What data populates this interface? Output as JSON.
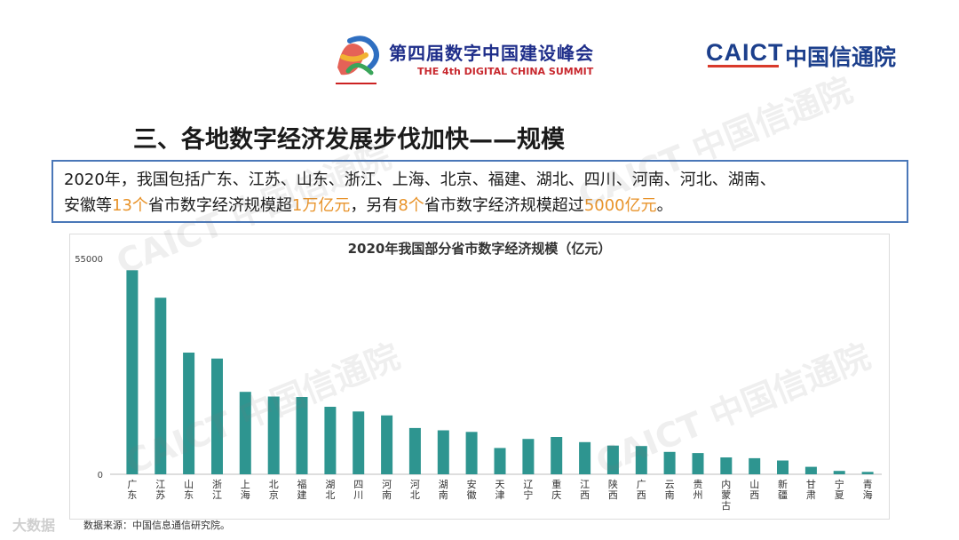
{
  "header": {
    "summit_title": "第四届数字中国建设峰会",
    "summit_subtitle": "THE 4th DIGITAL CHINA SUMMIT",
    "org_logo_en": "CAICT",
    "org_logo_cn": "中国信通院"
  },
  "slide_title": "三、各地数字经济发展步伐加快——规模",
  "summary": {
    "line1": "2020年，我国包括广东、江苏、山东、浙江、上海、北京、福建、湖北、四川、河南、河北、湖南、",
    "line2_a": "安徽等",
    "line2_hl1": "13个",
    "line2_b": "省市数字经济规模超",
    "line2_hl2": "1万亿元",
    "line2_c": "，另有",
    "line2_hl3": "8个",
    "line2_d": "省市数字经济规模超过",
    "line2_hl4": "5000亿元",
    "line2_e": "。"
  },
  "colors": {
    "bar": "#2e9590",
    "highlight": "#e8932a",
    "box_border": "#4a77b8",
    "title_blue": "#1c3f8c"
  },
  "watermark_text": "CAICT 中国信通院",
  "footer_left": "大数据",
  "source_note": "数据来源：中国信息通信研究院。",
  "chart_data": {
    "type": "bar",
    "title": "2020年我国部分省市数字经济规模（亿元）",
    "y_ticks": [
      "55000",
      "0"
    ],
    "ylim": [
      0,
      55000
    ],
    "grid": false,
    "categories": [
      "广东",
      "江苏",
      "山东",
      "浙江",
      "上海",
      "北京",
      "福建",
      "湖北",
      "四川",
      "河南",
      "河北",
      "湖南",
      "安徽",
      "天津",
      "辽宁",
      "重庆",
      "江西",
      "陕西",
      "广西",
      "云南",
      "贵州",
      "内蒙古",
      "山西",
      "新疆",
      "甘肃",
      "宁夏",
      "青海"
    ],
    "category_labels": [
      "广东",
      "江苏",
      "山东",
      "浙江",
      "上海",
      "北京",
      "福建",
      "湖北",
      "四川",
      "河南",
      "河北",
      "湖南",
      "安徽",
      "天津",
      "辽宁",
      "重庆",
      "江西",
      "陕西",
      "广西",
      "云南",
      "贵州",
      "内蒙古",
      "山西",
      "新疆",
      "甘肃",
      "宁夏",
      "青海"
    ],
    "values": [
      52000,
      45000,
      31000,
      29500,
      21000,
      19800,
      19700,
      17200,
      16000,
      15000,
      11800,
      11200,
      10800,
      6700,
      9000,
      9500,
      8200,
      7300,
      7200,
      5700,
      5400,
      4300,
      4100,
      3500,
      1900,
      850,
      600
    ]
  }
}
